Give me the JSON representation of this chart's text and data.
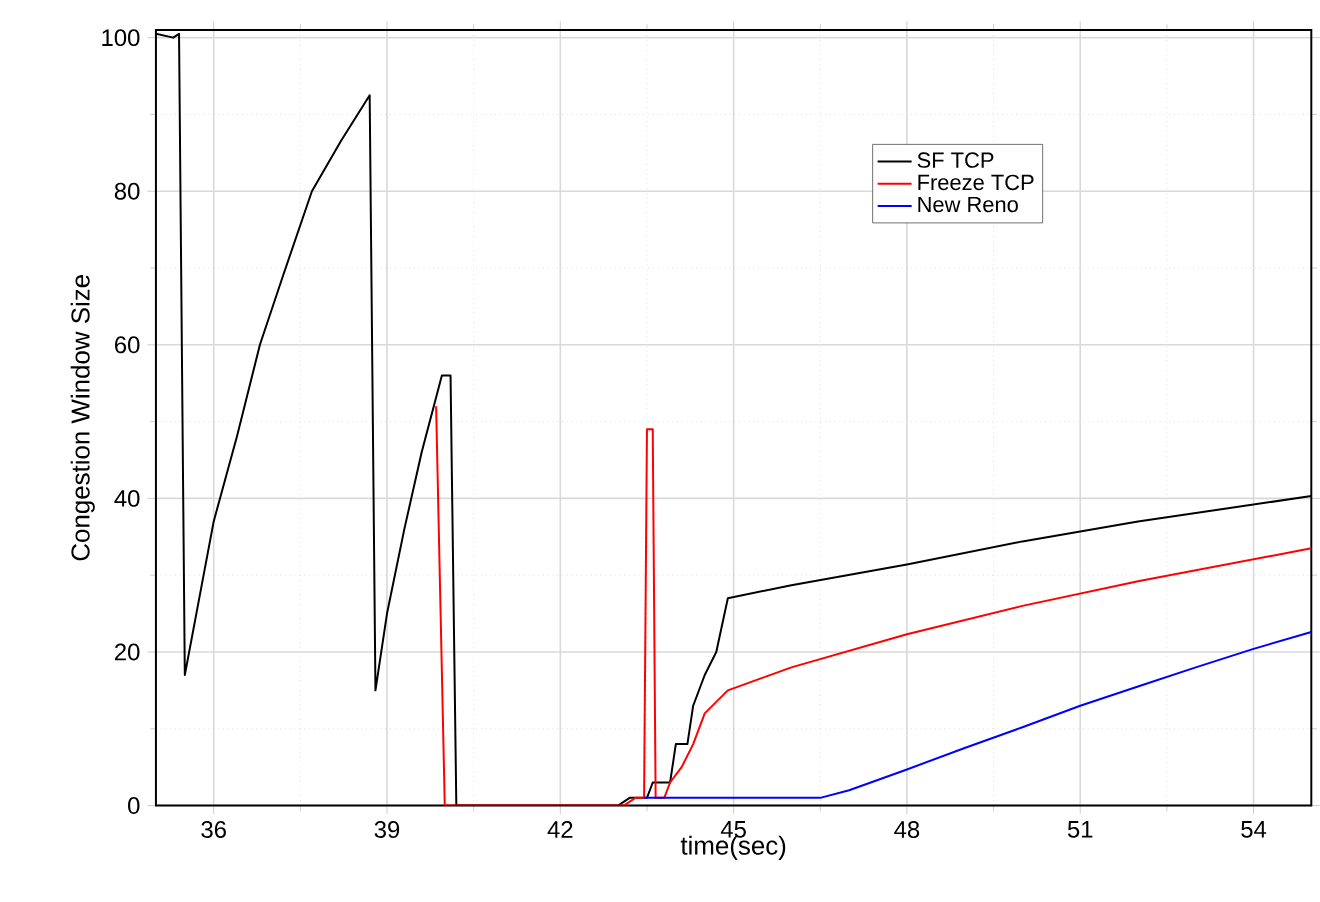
{
  "chart_data": {
    "type": "line",
    "xlabel": "time(sec)",
    "ylabel": "Congestion Window Size",
    "xlim": [
      35,
      55
    ],
    "ylim": [
      0,
      101
    ],
    "xticks": [
      36,
      39,
      42,
      45,
      48,
      51,
      54
    ],
    "yticks": [
      0,
      20,
      40,
      60,
      80,
      100
    ],
    "grid": true,
    "legend": "top right",
    "marker": "none",
    "line_style": "solid",
    "series": [
      {
        "name": "SF TCP",
        "color": "#000000",
        "x": [
          35,
          35.3,
          35.4,
          35.5,
          35.7,
          36,
          36.4,
          36.8,
          37.2,
          37.7,
          38.2,
          38.7,
          38.8,
          39.0,
          39.3,
          39.6,
          39.95,
          40.1,
          40.2,
          43.0,
          43.2,
          43.5,
          43.6,
          43.9,
          44.0,
          44.2,
          44.3,
          44.5,
          44.7,
          44.9,
          46,
          48,
          50,
          52,
          55
        ],
        "values": [
          100.5,
          100,
          100.5,
          17,
          25,
          37,
          48,
          60,
          69,
          80,
          86.5,
          92.5,
          15,
          25,
          36,
          46,
          56,
          56,
          0,
          0,
          1,
          1,
          3,
          3,
          8,
          8,
          13,
          17,
          20,
          27,
          28.7,
          31.4,
          34.4,
          37,
          40.3
        ]
      },
      {
        "name": "Freeze TCP",
        "color": "#ff0000",
        "x": [
          39.85,
          40.0,
          43.1,
          43.3,
          43.45,
          43.5,
          43.6,
          43.65,
          43.8,
          43.9,
          44.1,
          44.3,
          44.5,
          44.9,
          46,
          48,
          50,
          52,
          55
        ],
        "values": [
          52,
          0,
          0,
          1,
          1,
          49,
          49,
          1,
          1,
          3,
          5,
          8,
          12,
          15,
          18,
          22.3,
          26,
          29.2,
          33.5
        ]
      },
      {
        "name": "New Reno",
        "color": "#0000ff",
        "x": [
          43.45,
          46.5,
          47,
          48,
          49,
          50,
          51,
          52,
          53,
          54,
          55
        ],
        "values": [
          1,
          1,
          2,
          4.7,
          7.5,
          10.2,
          13,
          15.5,
          18,
          20.4,
          22.6
        ]
      }
    ]
  }
}
